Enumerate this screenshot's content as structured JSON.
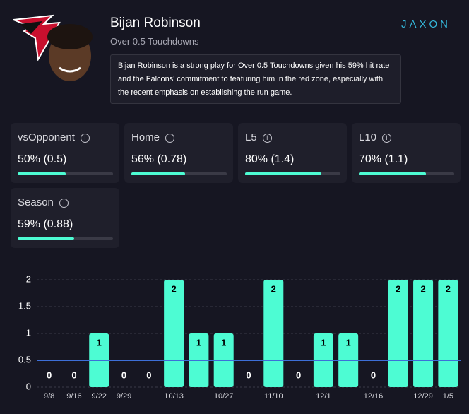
{
  "header": {
    "name": "Bijan Robinson",
    "subtitle": "Over 0.5 Touchdowns",
    "description": "Bijan Robinson is a strong play for Over 0.5 Touchdowns given his 59% hit rate and the Falcons' commitment to featuring him in the red zone, especially with the recent emphasis on establishing the run game.",
    "logo": "JAXON"
  },
  "stats": [
    {
      "label": "vsOpponent",
      "value": "50% (0.5)",
      "hit_rate": 50
    },
    {
      "label": "Home",
      "value": "56% (0.78)",
      "hit_rate": 56
    },
    {
      "label": "L5",
      "value": "80% (1.4)",
      "hit_rate": 80
    },
    {
      "label": "L10",
      "value": "70% (1.1)",
      "hit_rate": 70
    },
    {
      "label": "Season",
      "value": "59% (0.88)",
      "hit_rate": 59
    }
  ],
  "chart_data": {
    "type": "bar",
    "categories": [
      "9/8",
      "9/16",
      "9/22",
      "9/29",
      null,
      "10/13",
      null,
      "10/27",
      null,
      "11/10",
      null,
      "12/1",
      null,
      "12/16",
      null,
      "12/29",
      "1/5"
    ],
    "values": [
      0,
      0,
      1,
      0,
      0,
      2,
      1,
      1,
      0,
      2,
      0,
      1,
      1,
      0,
      2,
      2,
      2
    ],
    "color": "#4dfcd3",
    "ylim": [
      0,
      2
    ],
    "yticks": [
      0,
      0.5,
      1,
      1.5,
      2
    ],
    "grid": true,
    "threshold": 0.5,
    "threshold_color": "#3d6fd8"
  }
}
